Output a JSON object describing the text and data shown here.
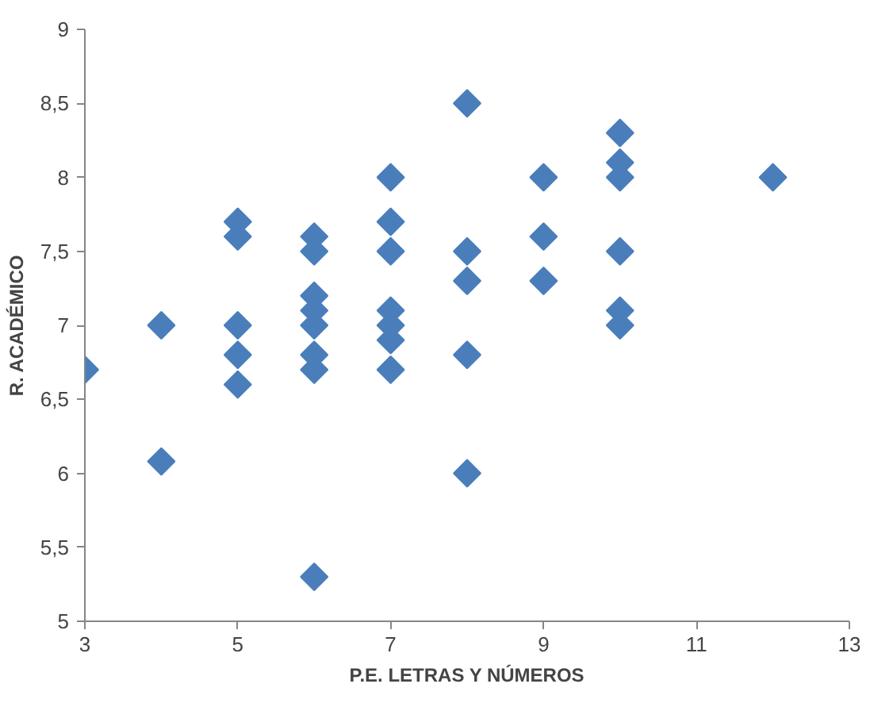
{
  "chart_data": {
    "type": "scatter",
    "xlabel": "P.E. LETRAS Y NÚMEROS",
    "ylabel": "R. ACADÉMICO",
    "x": [
      3,
      4,
      4,
      5,
      5,
      5,
      5,
      5,
      6,
      6,
      6,
      6,
      6,
      6,
      6,
      6,
      7,
      7,
      7,
      7,
      7,
      7,
      7,
      8,
      8,
      8,
      8,
      8,
      9,
      9,
      9,
      10,
      10,
      10,
      10,
      10,
      10,
      12
    ],
    "series": [
      {
        "color": "#4a7ebb",
        "values": [
          6.7,
          7.0,
          6.08,
          7.7,
          7.6,
          7.0,
          6.8,
          6.6,
          7.6,
          7.5,
          7.2,
          7.1,
          7.0,
          6.8,
          6.7,
          5.3,
          8.0,
          7.7,
          7.5,
          7.1,
          7.0,
          6.9,
          6.7,
          8.5,
          7.5,
          7.3,
          6.8,
          6.0,
          8.0,
          7.6,
          7.3,
          8.3,
          8.1,
          8.0,
          7.5,
          7.1,
          7.0,
          8.0
        ]
      }
    ],
    "xlim": [
      3,
      13
    ],
    "xticks": [
      3,
      5,
      7,
      9,
      11,
      13
    ],
    "ylim": [
      5,
      9
    ],
    "yticks": [
      5,
      {
        "value": 5.5,
        "label": "5,5"
      },
      6,
      {
        "value": 6.5,
        "label": "6,5"
      },
      7,
      {
        "value": 7.5,
        "label": "7,5"
      },
      8,
      {
        "value": 8.5,
        "label": "8,5"
      },
      9
    ],
    "marker": "diamond"
  }
}
